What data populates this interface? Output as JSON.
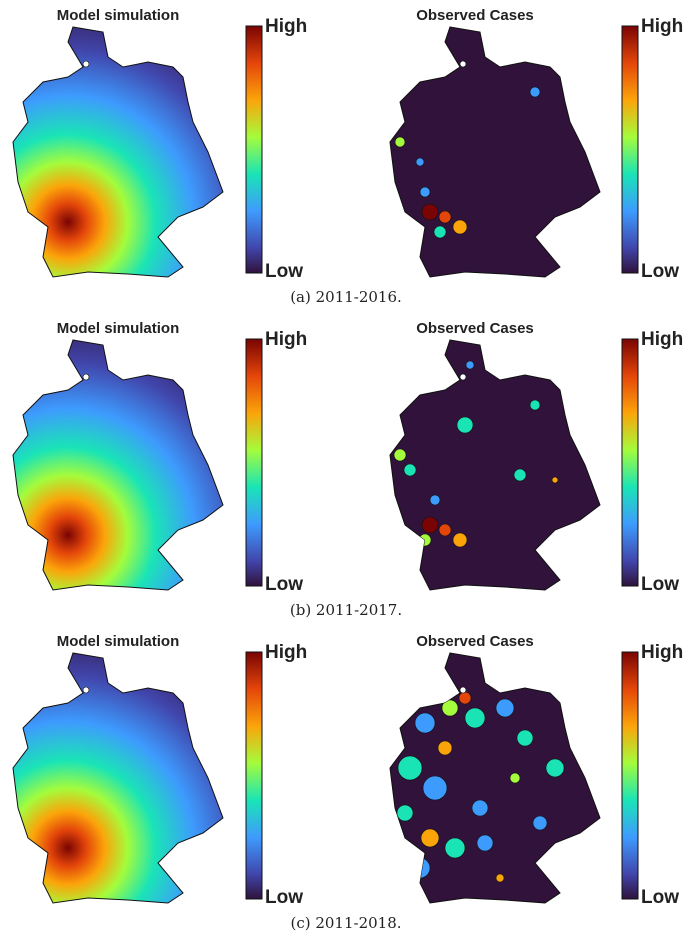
{
  "panels": [
    {
      "caption": "(a) 2011-2016.",
      "maps": [
        {
          "title": "Model simulation",
          "high": "High",
          "low": "Low"
        },
        {
          "title": "Observed Cases",
          "high": "High",
          "low": "Low"
        }
      ]
    },
    {
      "caption": "(b) 2011-2017.",
      "maps": [
        {
          "title": "Model simulation",
          "high": "High",
          "low": "Low"
        },
        {
          "title": "Observed Cases",
          "high": "High",
          "low": "Low"
        }
      ]
    },
    {
      "caption": "(c) 2011-2018.",
      "maps": [
        {
          "title": "Model simulation",
          "high": "High",
          "low": "Low"
        },
        {
          "title": "Observed Cases",
          "high": "High",
          "low": "Low"
        }
      ]
    }
  ]
}
